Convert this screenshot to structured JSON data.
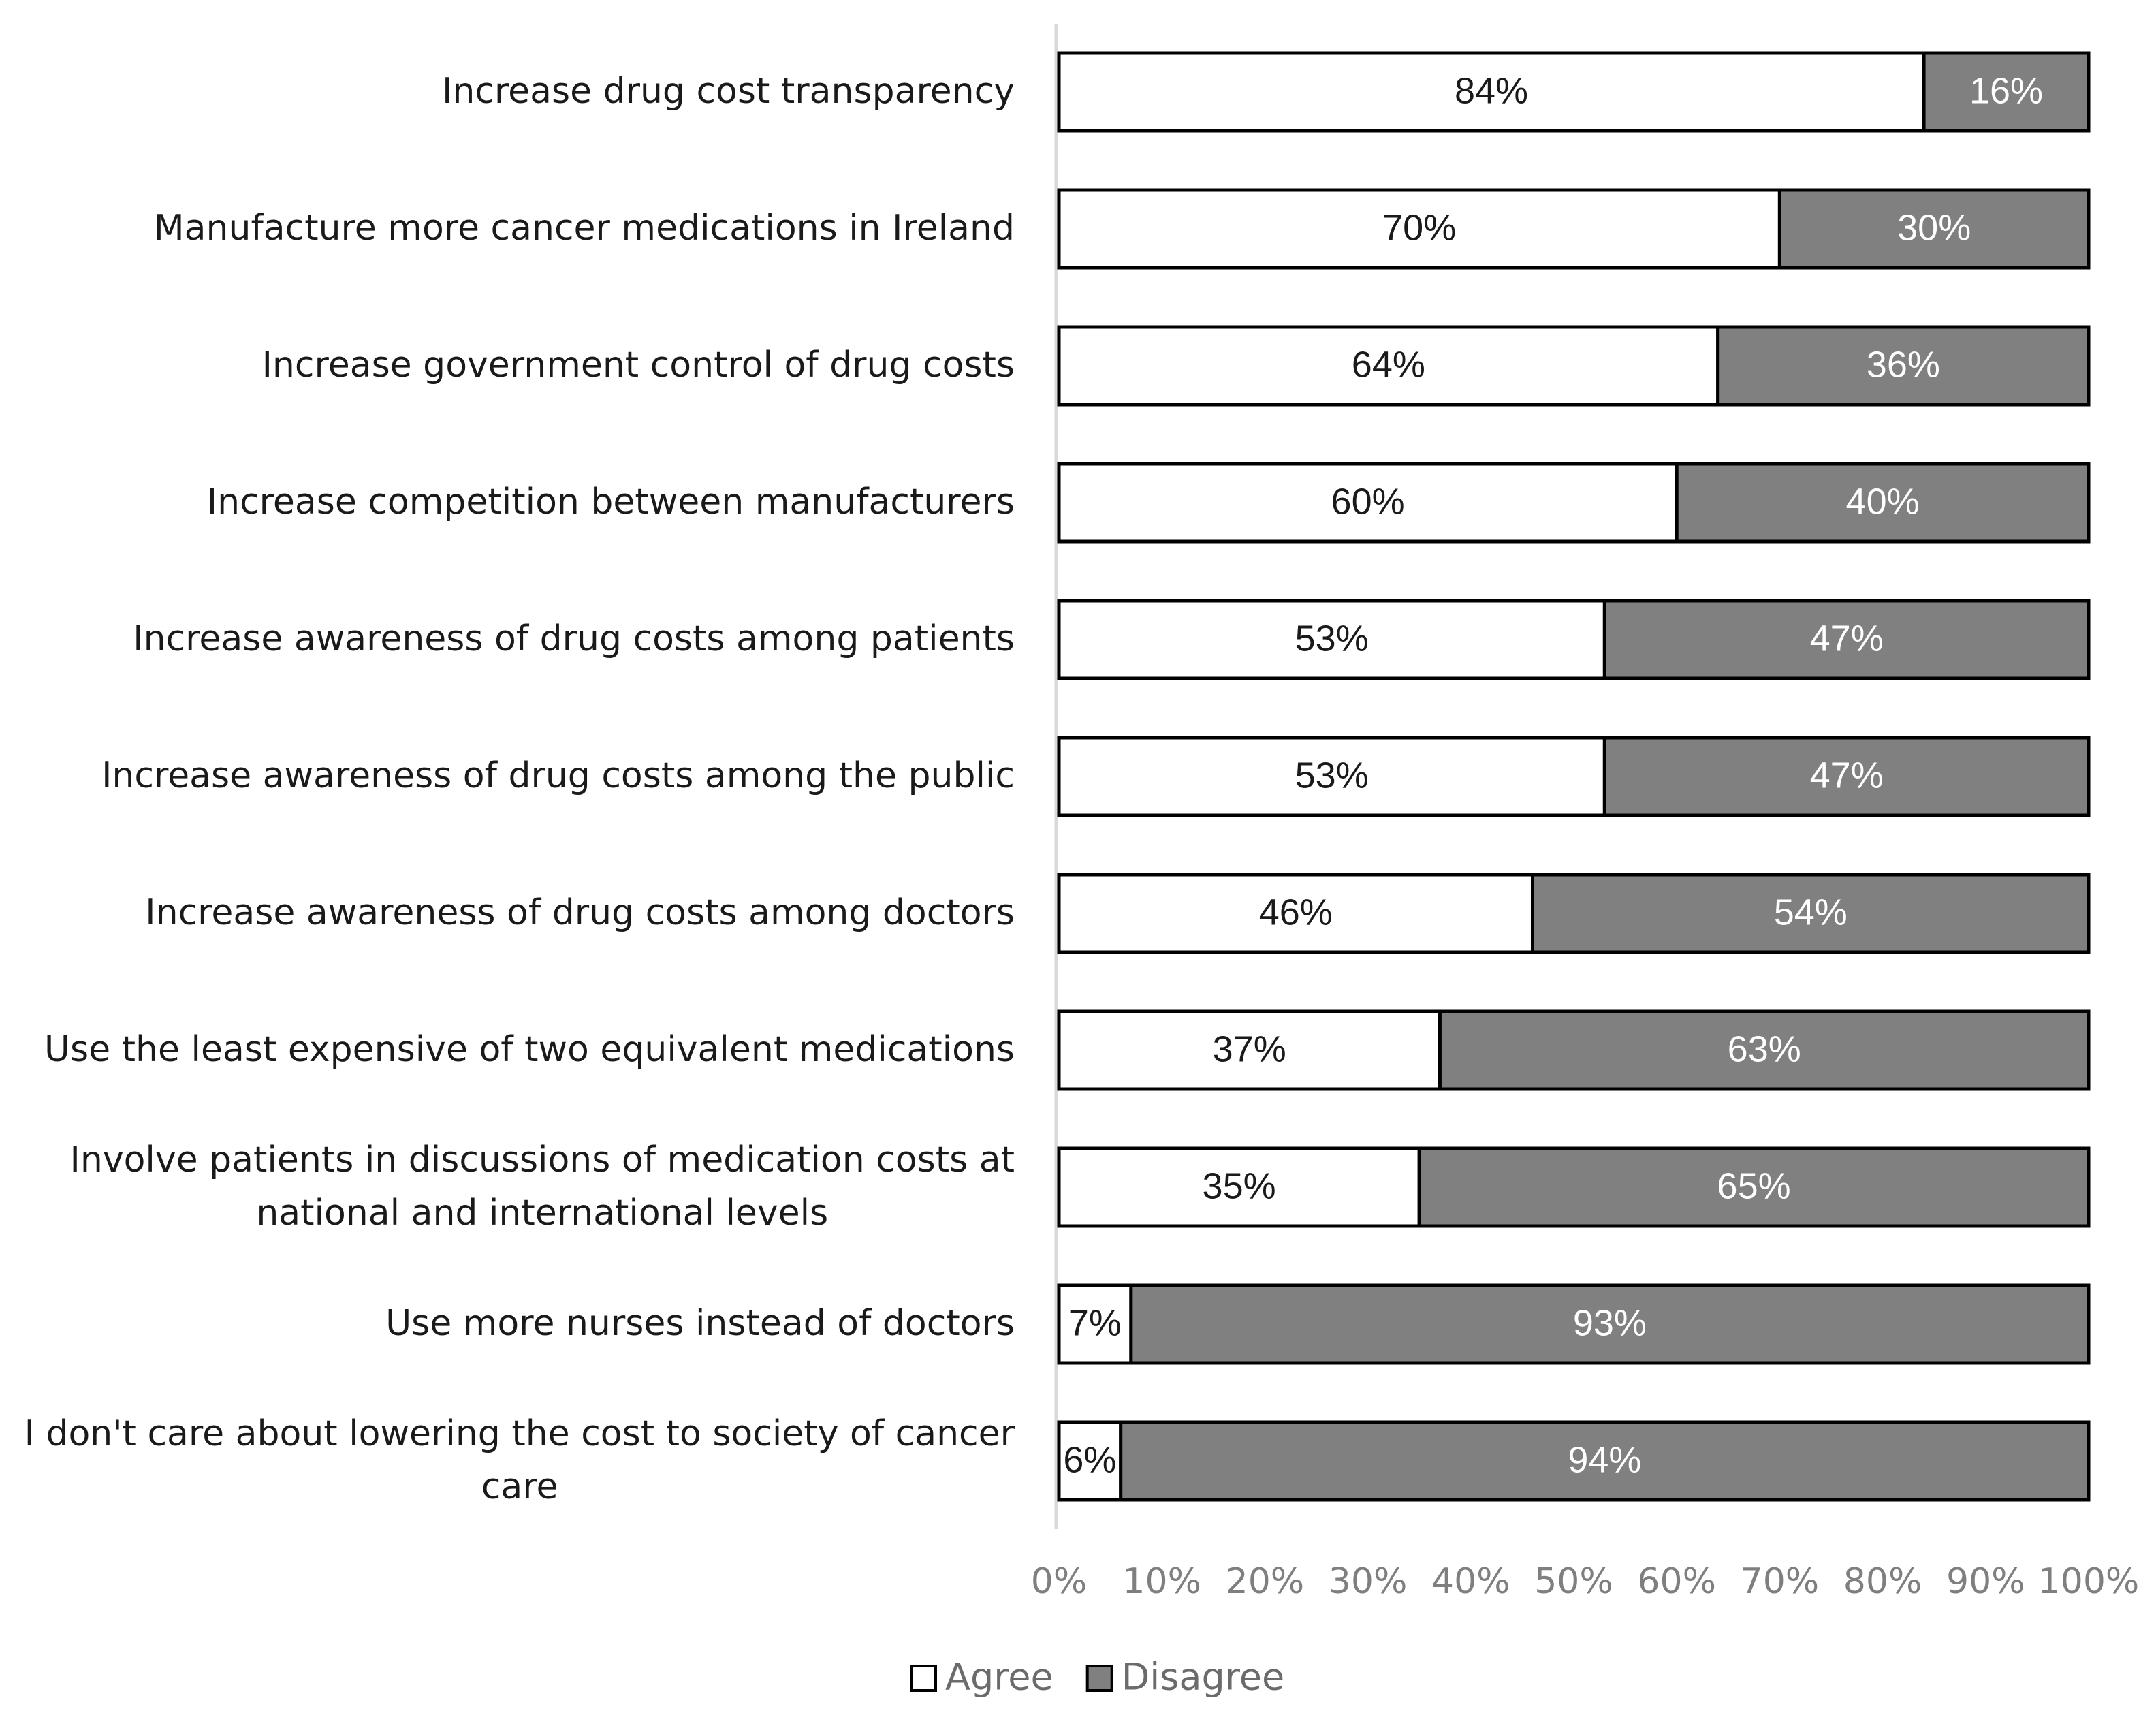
{
  "chart_data": {
    "type": "bar",
    "orientation": "horizontal",
    "stacked": true,
    "categories": [
      [
        "Increase drug cost transparency"
      ],
      [
        "Manufacture more cancer medications in Ireland"
      ],
      [
        "Increase government control of drug costs"
      ],
      [
        "Increase competition between manufacturers"
      ],
      [
        "Increase awareness of drug costs among patients"
      ],
      [
        "Increase awareness of drug costs among the public"
      ],
      [
        "Increase awareness of drug costs among doctors"
      ],
      [
        "Use the least expensive of two equivalent medications"
      ],
      [
        "Involve patients in discussions of medication costs at",
        "national and international levels"
      ],
      [
        "Use more nurses instead of doctors"
      ],
      [
        "I don't care about lowering the cost to society of cancer",
        "care"
      ]
    ],
    "series": [
      {
        "name": "Agree",
        "color": "#ffffff",
        "label_color": "#1a1a1a",
        "values": [
          84,
          70,
          64,
          60,
          53,
          53,
          46,
          37,
          35,
          7,
          6
        ],
        "labels": [
          "84%",
          "70%",
          "64%",
          "60%",
          "53%",
          "53%",
          "46%",
          "37%",
          "35%",
          "7%",
          "6%"
        ]
      },
      {
        "name": "Disagree",
        "color": "#808080",
        "label_color": "#ffffff",
        "values": [
          16,
          30,
          36,
          40,
          47,
          47,
          54,
          63,
          65,
          93,
          94
        ],
        "labels": [
          "16%",
          "30%",
          "36%",
          "40%",
          "47%",
          "47%",
          "54%",
          "63%",
          "65%",
          "93%",
          "94%"
        ]
      }
    ],
    "xlim": [
      0,
      100
    ],
    "xticks": [
      "0%",
      "10%",
      "20%",
      "30%",
      "40%",
      "50%",
      "60%",
      "70%",
      "80%",
      "90%",
      "100%"
    ],
    "title": "",
    "xlabel": "",
    "ylabel": "",
    "grid": false,
    "legend": {
      "position": "bottom",
      "entries": [
        "Agree",
        "Disagree"
      ]
    }
  }
}
